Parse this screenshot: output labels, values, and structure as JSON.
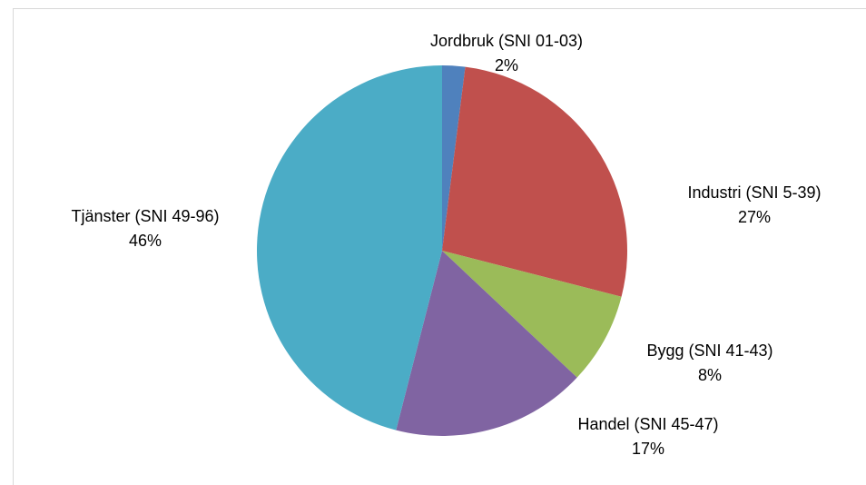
{
  "chart_data": {
    "type": "pie",
    "title": "",
    "slices": [
      {
        "label": "Jordbruk (SNI 01-03)",
        "value": 2,
        "percent_label": "2%",
        "color": "#4F81BD"
      },
      {
        "label": "Industri (SNI 5-39)",
        "value": 27,
        "percent_label": "27%",
        "color": "#C0504D"
      },
      {
        "label": "Bygg (SNI 41-43)",
        "value": 8,
        "percent_label": "8%",
        "color": "#9BBB59"
      },
      {
        "label": "Handel (SNI 45-47)",
        "value": 17,
        "percent_label": "17%",
        "color": "#8064A2"
      },
      {
        "label": "Tjänster (SNI 49-96)",
        "value": 46,
        "percent_label": "46%",
        "color": "#4BACC6"
      }
    ],
    "start_angle": "12 o'clock",
    "direction": "clockwise",
    "legend": "none",
    "data_labels": "outside"
  }
}
